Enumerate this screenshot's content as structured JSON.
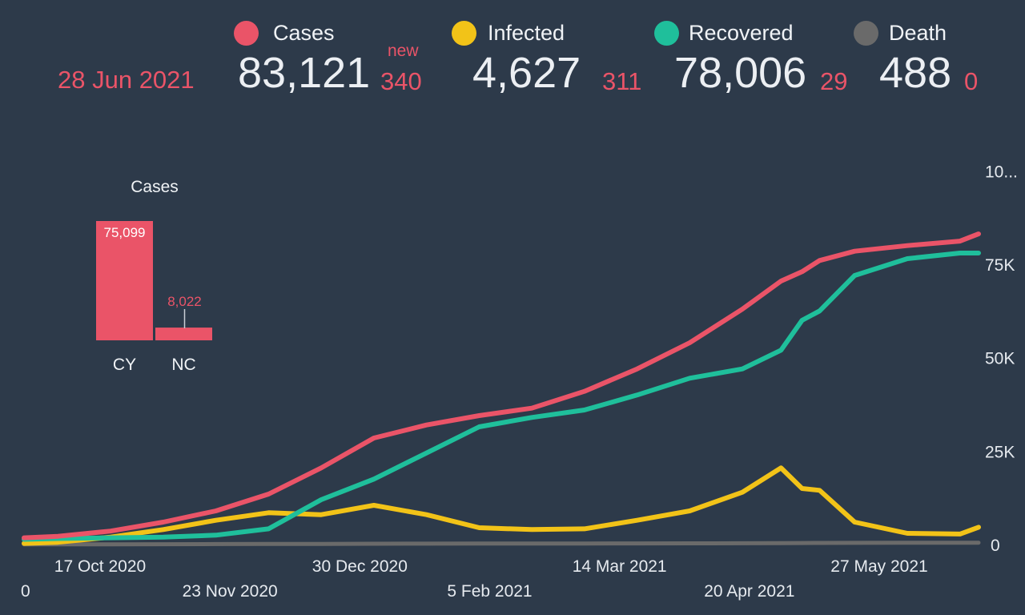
{
  "date": "28 Jun 2021",
  "new_label": "new",
  "stats": {
    "cases": {
      "label": "Cases",
      "value": "83,121",
      "delta": "340",
      "color": "#ea5468"
    },
    "infected": {
      "label": "Infected",
      "value": "4,627",
      "delta": "311",
      "color": "#f2c318"
    },
    "recovered": {
      "label": "Recovered",
      "value": "78,006",
      "delta": "29",
      "color": "#1fbf9b"
    },
    "death": {
      "label": "Death",
      "value": "488",
      "delta": "0",
      "color": "#6a6a6a"
    }
  },
  "chart_data": [
    {
      "type": "bar",
      "title": "Cases",
      "categories": [
        "CY",
        "NC"
      ],
      "values": [
        75099,
        8022
      ],
      "value_labels": [
        "75,099",
        "8,022"
      ],
      "color": "#ea5468"
    },
    {
      "type": "line",
      "x_tick_labels": [
        "17 Oct 2020",
        "23 Nov 2020",
        "30 Dec 2020",
        "5 Feb 2021",
        "14 Mar 2021",
        "20 Apr 2021",
        "27 May 2021"
      ],
      "left_edge_tick": "0",
      "y_tick_labels": [
        "0",
        "25K",
        "50K",
        "75K",
        "10..."
      ],
      "ylim": [
        0,
        100000
      ],
      "grid": false,
      "x_dates": [
        "2020-09-20",
        "2020-10-05",
        "2020-10-20",
        "2020-11-04",
        "2020-11-19",
        "2020-12-04",
        "2020-12-19",
        "2021-01-03",
        "2021-01-18",
        "2021-02-02",
        "2021-02-17",
        "2021-03-04",
        "2021-03-19",
        "2021-04-03",
        "2021-04-18",
        "2021-04-29",
        "2021-05-05",
        "2021-05-10",
        "2021-05-20",
        "2021-06-04",
        "2021-06-19",
        "2021-06-28"
      ],
      "series": [
        {
          "name": "Cases",
          "color": "#ea5468",
          "values": [
            1800,
            2200,
            3600,
            6000,
            9000,
            13500,
            20500,
            28500,
            32000,
            34500,
            36500,
            41000,
            47000,
            54000,
            63000,
            70500,
            73000,
            76000,
            78500,
            80000,
            81200,
            83121
          ]
        },
        {
          "name": "Infected",
          "color": "#f2c318",
          "values": [
            300,
            600,
            2000,
            4000,
            6500,
            8500,
            8000,
            10500,
            8000,
            4500,
            4000,
            4200,
            6500,
            9000,
            14000,
            20500,
            15000,
            14500,
            6000,
            3000,
            2800,
            4627
          ]
        },
        {
          "name": "Recovered",
          "color": "#1fbf9b",
          "values": [
            1400,
            1600,
            1800,
            2000,
            2500,
            4200,
            12000,
            17500,
            24500,
            31500,
            34000,
            36000,
            40000,
            44500,
            47000,
            52000,
            60000,
            62500,
            72000,
            76500,
            78000,
            78006
          ]
        },
        {
          "name": "Death",
          "color": "#6a6a6a",
          "values": [
            40,
            45,
            60,
            90,
            120,
            150,
            180,
            210,
            240,
            260,
            270,
            280,
            300,
            320,
            350,
            380,
            400,
            420,
            450,
            470,
            480,
            488
          ]
        }
      ]
    }
  ]
}
